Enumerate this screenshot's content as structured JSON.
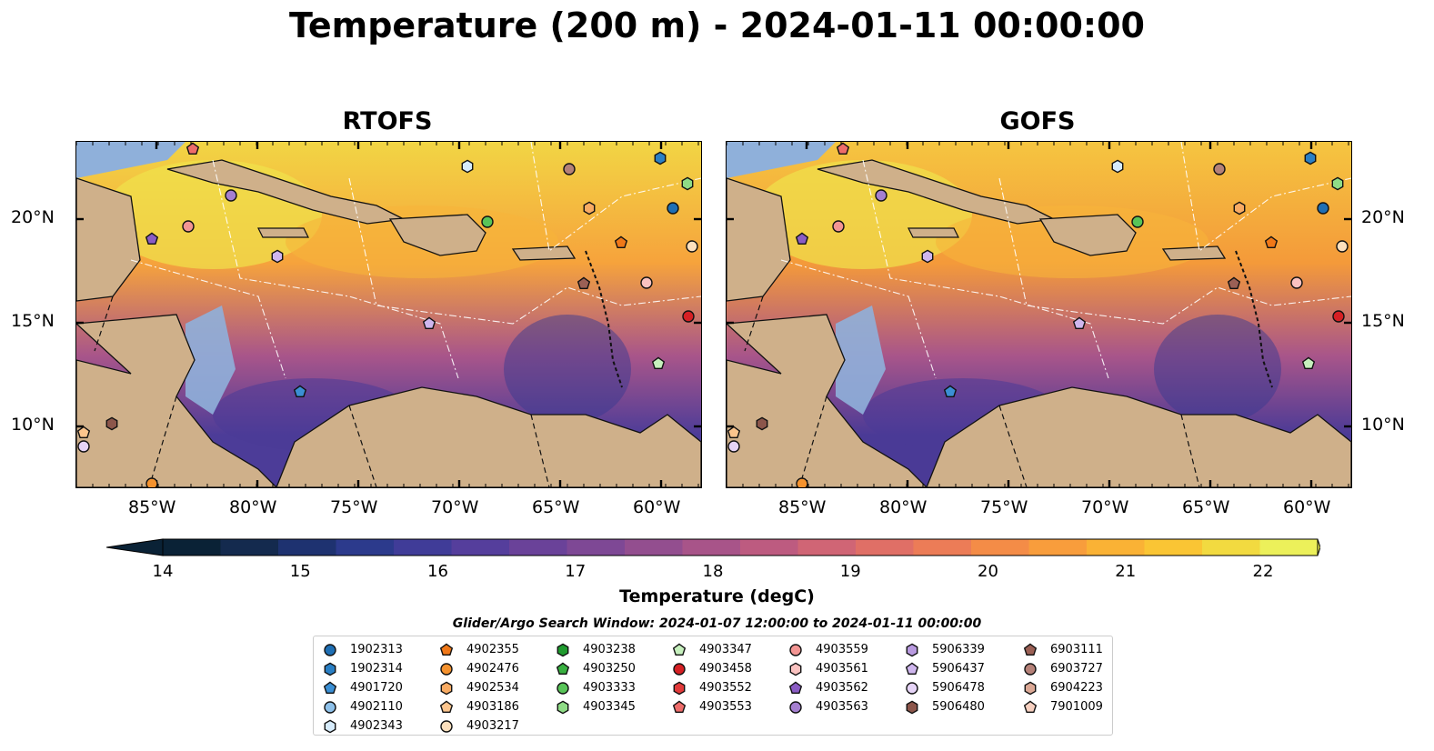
{
  "title": "Temperature (200 m) - 2024-01-11 00:00:00",
  "panels": [
    {
      "title": "RTOFS"
    },
    {
      "title": "GOFS"
    }
  ],
  "x_ticks": [
    "85°W",
    "80°W",
    "75°W",
    "70°W",
    "65°W",
    "60°W"
  ],
  "y_ticks": [
    "20°N",
    "15°N",
    "10°N"
  ],
  "colorbar": {
    "label": "Temperature (degC)",
    "ticks": [
      "14",
      "15",
      "16",
      "17",
      "18",
      "19",
      "20",
      "21",
      "22"
    ],
    "colors": [
      "#0a2236",
      "#142a4e",
      "#1e3270",
      "#2c3a8c",
      "#403c98",
      "#553e9c",
      "#6a4299",
      "#7e4895",
      "#934e8f",
      "#a85489",
      "#bd5b80",
      "#d06575",
      "#e06f66",
      "#ec7c57",
      "#f48c47",
      "#f89d3c",
      "#fab235",
      "#fac534",
      "#f2da40",
      "#ecf05a"
    ]
  },
  "legend": {
    "title": "Glider/Argo Search Window: 2024-01-07 12:00:00 to 2024-01-11 00:00:00",
    "columns": [
      [
        {
          "id": "1902313",
          "shape": "circle",
          "color": "#1f6fb4"
        },
        {
          "id": "1902314",
          "shape": "hexagon",
          "color": "#2a7fc4"
        },
        {
          "id": "4901720",
          "shape": "pentagon",
          "color": "#3b8fd4"
        },
        {
          "id": "4902110",
          "shape": "circle",
          "color": "#8ec1ea"
        },
        {
          "id": "4902343",
          "shape": "hexagon",
          "color": "#d6ebfb"
        }
      ],
      [
        {
          "id": "4902355",
          "shape": "pentagon",
          "color": "#f07818"
        },
        {
          "id": "4902476",
          "shape": "circle",
          "color": "#f5922e"
        },
        {
          "id": "4902534",
          "shape": "hexagon",
          "color": "#f8ab63"
        },
        {
          "id": "4903186",
          "shape": "pentagon",
          "color": "#fcc58d"
        },
        {
          "id": "4903217",
          "shape": "circle",
          "color": "#fde0bd"
        }
      ],
      [
        {
          "id": "4903238",
          "shape": "hexagon",
          "color": "#1f9a2e"
        },
        {
          "id": "4903250",
          "shape": "pentagon",
          "color": "#38b040"
        },
        {
          "id": "4903333",
          "shape": "circle",
          "color": "#58c458"
        },
        {
          "id": "4903345",
          "shape": "hexagon",
          "color": "#8fdc86"
        }
      ],
      [
        {
          "id": "4903347",
          "shape": "pentagon",
          "color": "#c6f0bd"
        },
        {
          "id": "4903458",
          "shape": "circle",
          "color": "#d62024"
        },
        {
          "id": "4903552",
          "shape": "hexagon",
          "color": "#e23a3a"
        },
        {
          "id": "4903553",
          "shape": "pentagon",
          "color": "#ee6c6a"
        }
      ],
      [
        {
          "id": "4903559",
          "shape": "circle",
          "color": "#f39593"
        },
        {
          "id": "4903561",
          "shape": "hexagon",
          "color": "#fac2c0"
        },
        {
          "id": "4903562",
          "shape": "pentagon",
          "color": "#8a5cc4"
        },
        {
          "id": "4903563",
          "shape": "circle",
          "color": "#a57fd0"
        }
      ],
      [
        {
          "id": "5906339",
          "shape": "hexagon",
          "color": "#b99ae0"
        },
        {
          "id": "5906437",
          "shape": "pentagon",
          "color": "#cfb6ee"
        },
        {
          "id": "5906478",
          "shape": "circle",
          "color": "#e6d4f7"
        },
        {
          "id": "5906480",
          "shape": "hexagon",
          "color": "#8c564b"
        }
      ],
      [
        {
          "id": "6903111",
          "shape": "pentagon",
          "color": "#9b6055"
        },
        {
          "id": "6903727",
          "shape": "circle",
          "color": "#b58178"
        },
        {
          "id": "6904223",
          "shape": "hexagon",
          "color": "#dba895"
        },
        {
          "id": "7901009",
          "shape": "pentagon",
          "color": "#f7d0c0"
        }
      ]
    ]
  }
}
